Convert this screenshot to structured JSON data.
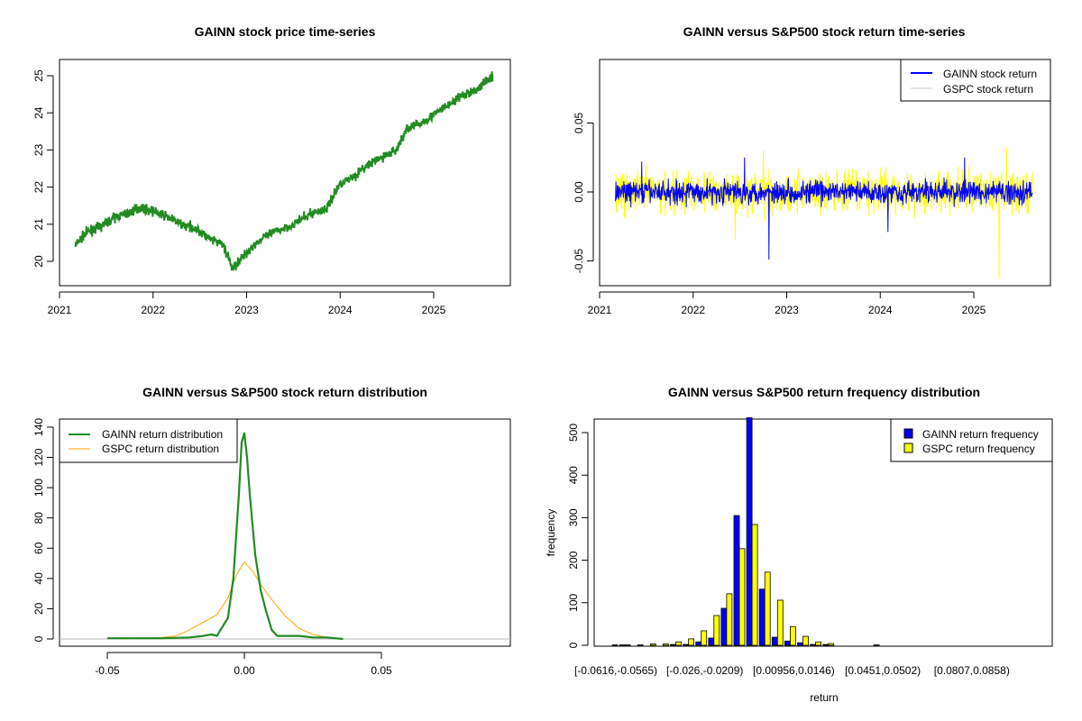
{
  "chart_data": [
    {
      "type": "line",
      "title": "GAINN stock price time-series",
      "xlabel": "",
      "ylabel": "",
      "x_ticks": [
        "2021",
        "2022",
        "2023",
        "2024",
        "2025"
      ],
      "y_ticks": [
        "20",
        "21",
        "22",
        "23",
        "24",
        "25"
      ],
      "xlim": [
        2021,
        2025.82
      ],
      "ylim": [
        19.5,
        25.3
      ],
      "color": "#228B22",
      "x": [
        2021.17,
        2021.3,
        2021.45,
        2021.6,
        2021.75,
        2021.85,
        2022.0,
        2022.15,
        2022.3,
        2022.45,
        2022.6,
        2022.75,
        2022.85,
        2022.95,
        2023.1,
        2023.3,
        2023.5,
        2023.7,
        2023.85,
        2024.0,
        2024.15,
        2024.3,
        2024.45,
        2024.6,
        2024.72,
        2024.85,
        2025.0,
        2025.15,
        2025.3,
        2025.45,
        2025.6,
        2025.63
      ],
      "y": [
        20.45,
        20.8,
        20.95,
        21.2,
        21.3,
        21.45,
        21.35,
        21.2,
        21.0,
        20.9,
        20.6,
        20.45,
        19.8,
        20.1,
        20.5,
        20.8,
        21.0,
        21.3,
        21.4,
        22.1,
        22.3,
        22.6,
        22.8,
        23.0,
        23.6,
        23.7,
        23.95,
        24.2,
        24.45,
        24.6,
        24.95,
        24.95
      ]
    },
    {
      "type": "line",
      "title": "GAINN versus S&P500 stock return time-series",
      "x_ticks": [
        "2021",
        "2022",
        "2023",
        "2024",
        "2025"
      ],
      "y_ticks": [
        "-0.05",
        "0.00",
        "0.05"
      ],
      "xlim": [
        2021,
        2025.82
      ],
      "ylim": [
        -0.064,
        0.098
      ],
      "series": [
        {
          "name": "GAINN stock return",
          "color": "#0000FF",
          "sd": 0.006,
          "spikes": [
            [
              2022.81,
              -0.049
            ],
            [
              2024.08,
              -0.029
            ],
            [
              2021.45,
              0.022
            ],
            [
              2022.55,
              0.025
            ],
            [
              2024.9,
              0.025
            ]
          ]
        },
        {
          "name": "GSPC stock return",
          "color": "#FFFF00",
          "sd": 0.011,
          "spikes": [
            [
              2025.27,
              -0.063
            ],
            [
              2025.35,
              0.032
            ],
            [
              2022.75,
              0.03
            ],
            [
              2022.45,
              -0.035
            ]
          ]
        }
      ],
      "legend_position": "top-right"
    },
    {
      "type": "line",
      "title": "GAINN versus S&P500 stock return distribution",
      "x_ticks": [
        "-0.05",
        "0.00",
        "0.05"
      ],
      "y_ticks": [
        "0",
        "20",
        "40",
        "60",
        "80",
        "100",
        "120",
        "140"
      ],
      "xlim": [
        -0.067,
        0.098
      ],
      "ylim": [
        -1.5,
        142
      ],
      "series": [
        {
          "name": "GAINN return distribution",
          "color": "#228B22",
          "x": [
            -0.05,
            -0.04,
            -0.03,
            -0.02,
            -0.015,
            -0.012,
            -0.01,
            -0.008,
            -0.006,
            -0.004,
            -0.002,
            -0.001,
            0,
            0.001,
            0.002,
            0.004,
            0.006,
            0.008,
            0.01,
            0.012,
            0.015,
            0.02,
            0.025,
            0.03,
            0.036
          ],
          "y": [
            0.5,
            0.5,
            0.5,
            1,
            2,
            3,
            2,
            8,
            14,
            40,
            95,
            130,
            136,
            120,
            95,
            55,
            32,
            18,
            6,
            2,
            2,
            2,
            1,
            1,
            0
          ]
        },
        {
          "name": "GSPC return distribution",
          "color": "#FFA500",
          "x": [
            -0.045,
            -0.035,
            -0.03,
            -0.025,
            -0.02,
            -0.015,
            -0.01,
            -0.006,
            -0.003,
            0,
            0.003,
            0.006,
            0.01,
            0.015,
            0.02,
            0.025,
            0.03,
            0.035
          ],
          "y": [
            0,
            0.5,
            1,
            2,
            6,
            11,
            16,
            27,
            42,
            51,
            45,
            36,
            26,
            15,
            7,
            3,
            1,
            0
          ]
        }
      ],
      "legend_position": "top-left"
    },
    {
      "type": "bar",
      "title": "GAINN versus S&P500 return frequency distribution",
      "xlabel": "return",
      "ylabel": "frequency",
      "y_ticks": [
        "0",
        "100",
        "200",
        "300",
        "400",
        "500"
      ],
      "ylim": [
        0,
        535
      ],
      "category_labels_shown": [
        "[-0.0616,-0.0565)",
        "[-0.026,-0.0209)",
        "[0.00956,0.0146)",
        "[0.0451,0.0502)",
        "[0.0807,0.0858)"
      ],
      "series": [
        {
          "name": "GAINN return frequency",
          "color": "#0000FF",
          "values": [
            0,
            1,
            0,
            0,
            0,
            2,
            2,
            8,
            17,
            87,
            305,
            535,
            132,
            19,
            10,
            6,
            2,
            2,
            0,
            0,
            0,
            1,
            0,
            0,
            0,
            0,
            0,
            0,
            0,
            0
          ]
        },
        {
          "name": "GSPC return frequency",
          "color": "#FFFF00",
          "values": [
            1,
            1,
            1,
            3,
            3,
            8,
            15,
            34,
            70,
            121,
            227,
            284,
            172,
            106,
            44,
            21,
            8,
            4,
            0,
            0,
            0,
            0,
            0,
            0,
            0,
            0,
            0,
            0,
            0,
            0
          ]
        }
      ],
      "legend_position": "top-right"
    }
  ]
}
